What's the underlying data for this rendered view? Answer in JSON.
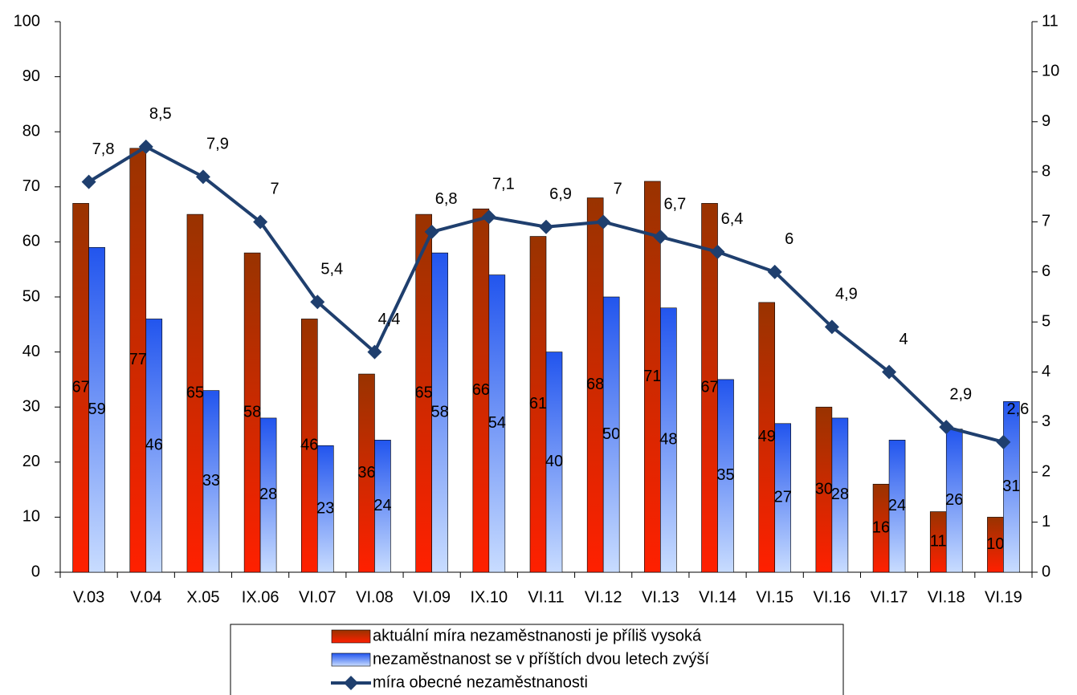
{
  "chart_data": {
    "type": "bar-line",
    "categories": [
      "V.03",
      "V.04",
      "X.05",
      "IX.06",
      "VI.07",
      "VI.08",
      "VI.09",
      "IX.10",
      "VI.11",
      "VI.12",
      "VI.13",
      "VI.14",
      "VI.15",
      "VI.16",
      "VI.17",
      "VI.18",
      "VI.19"
    ],
    "series": [
      {
        "name": "aktuální míra nezaměstnanosti je příliš vysoká",
        "type": "bar",
        "color": "#cc2200",
        "values": [
          67,
          77,
          65,
          58,
          46,
          36,
          65,
          66,
          61,
          68,
          71,
          67,
          49,
          30,
          16,
          11,
          10
        ]
      },
      {
        "name": "nezaměstnanost se v příštích dvou letech zvýší",
        "type": "bar",
        "color": "#3366ff",
        "values": [
          59,
          46,
          33,
          28,
          23,
          24,
          58,
          54,
          40,
          50,
          48,
          35,
          27,
          28,
          24,
          26,
          31
        ]
      },
      {
        "name": "míra obecné nezaměstnanosti",
        "type": "line",
        "axis": "y2",
        "color": "#1f3f6e",
        "values": [
          7.8,
          8.5,
          7.9,
          7,
          5.4,
          4.4,
          6.8,
          7.1,
          6.9,
          7,
          6.7,
          6.4,
          6,
          4.9,
          4,
          2.9,
          2.6
        ],
        "value_labels": [
          "7,8",
          "8,5",
          "7,9",
          "7",
          "5,4",
          "4,4",
          "6,8",
          "7,1",
          "6,9",
          "7",
          "6,7",
          "6,4",
          "6",
          "4,9",
          "4",
          "2,9",
          "2,6"
        ]
      }
    ],
    "ylim": [
      0,
      100
    ],
    "yticks": [
      0,
      10,
      20,
      30,
      40,
      50,
      60,
      70,
      80,
      90,
      100
    ],
    "y2lim": [
      0,
      11
    ],
    "y2ticks": [
      0,
      1,
      2,
      3,
      4,
      5,
      6,
      7,
      8,
      9,
      10,
      11
    ],
    "grid": false
  }
}
